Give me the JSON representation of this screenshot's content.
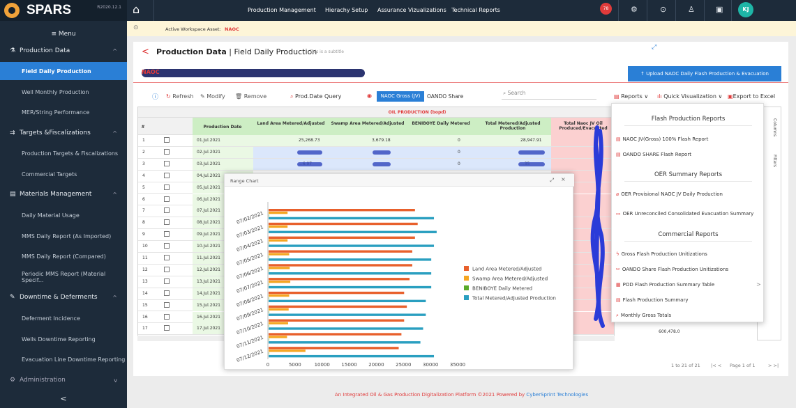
{
  "app": {
    "name": "SPARS",
    "version": "R2020.12.1"
  },
  "sidebar": {
    "menu_label": "≡ Menu",
    "sections": [
      {
        "label": "Production Data",
        "items": [
          "Field Daily Production",
          "Well Monthly Production",
          "MER/String Performance"
        ]
      },
      {
        "label": "Targets &Fiscalizations",
        "items": [
          "Production Targets & Fiscalizations",
          "Commercial Targets"
        ]
      },
      {
        "label": "Materials Management",
        "items": [
          "Daily Material Usage",
          "MMS Daily Report (As Imported)",
          "MMS Daily Report (Compared)",
          "Periodic MMS Report (Material Specif..."
        ]
      },
      {
        "label": "Downtime & Deferments",
        "items": [
          "Deferment Incidence",
          "Wells Downtime Reporting",
          "Evacuation Line Downtime Reporting"
        ]
      },
      {
        "label": "Administration",
        "items": []
      }
    ],
    "collapse": "<"
  },
  "topnav": {
    "items": [
      "Production Management",
      "Hierachy Setup",
      "Assurance Vizualizations",
      "Technical Reports"
    ],
    "notifications": "78",
    "avatar": "KJ"
  },
  "workspace": {
    "label": "Active Workspace Asset:",
    "value": "NAOC"
  },
  "page": {
    "title": "Production Data",
    "title_sep": " | ",
    "title_sub": "Field Daily Production",
    "subtitle": "This is a subtitle",
    "subheader": "NAOC",
    "upload_button": "↑ Upload NAOC Daily Flash Production & Evacuation"
  },
  "toolbar": {
    "refresh": "Refresh",
    "modify": "Modify",
    "remove": "Remove",
    "query": "Prod.Date Query",
    "gross": "NAOC Gross (JV)",
    "share": "OANDO Share",
    "search_placeholder": "Search",
    "reports": "Reports",
    "quick_viz": "Quick Visualization",
    "export": "Export to Excel"
  },
  "grid": {
    "group_header": "OIL PRODUCTION (bopd)",
    "columns": [
      "#",
      "Production Date",
      "Land Area Metered/Adjusted",
      "Swamp Area Metered/Adjusted",
      "BENIBOYE Daily Metered",
      "Total Metered/Adjusted Production",
      "Total Naoc JV Oil Produced/Evacuated"
    ],
    "rows": [
      {
        "n": "1",
        "date": "01.Jul.2021",
        "land": "25,268.73",
        "swamp": "3,679.18",
        "beni": "0",
        "total": "28,947.91"
      },
      {
        "n": "2",
        "date": "02.Jul.2021",
        "land": "",
        "swamp": "",
        "beni": "0",
        "total": ""
      },
      {
        "n": "3",
        "date": "03.Jul.2021",
        "land": "...6.97",
        "swamp": "",
        "beni": "0",
        "total": "...35"
      },
      {
        "n": "4",
        "date": "04.Jul.2021"
      },
      {
        "n": "5",
        "date": "05.Jul.2021"
      },
      {
        "n": "6",
        "date": "06.Jul.2021"
      },
      {
        "n": "7",
        "date": "07.Jul.2021"
      },
      {
        "n": "8",
        "date": "08.Jul.2021"
      },
      {
        "n": "9",
        "date": "09.Jul.2021"
      },
      {
        "n": "10",
        "date": "10.Jul.2021"
      },
      {
        "n": "11",
        "date": "11.Jul.2021"
      },
      {
        "n": "12",
        "date": "12.Jul.2021"
      },
      {
        "n": "13",
        "date": "13.Jul.2021"
      },
      {
        "n": "14",
        "date": "14.Jul.2021"
      },
      {
        "n": "15",
        "date": "15.Jul.2021"
      },
      {
        "n": "16",
        "date": "16.Jul.2021"
      },
      {
        "n": "17",
        "date": "17.Jul.2021"
      }
    ],
    "right_value": "600,478.0",
    "side_columns": "Columns",
    "side_filters": "Filters"
  },
  "chart_window": {
    "title": "Range Chart"
  },
  "chart_data": {
    "type": "bar",
    "orientation": "horizontal",
    "categories": [
      "07/02/2021",
      "07/03/2021",
      "07/04/2021",
      "07/05/2021",
      "07/06/2021",
      "07/07/2021",
      "07/08/2021",
      "07/09/2021",
      "07/10/2021",
      "07/11/2021",
      "07/12/2021"
    ],
    "series": [
      {
        "name": "Land Area Metered/Adjusted",
        "color": "#e8602c",
        "values": [
          27000,
          27500,
          27000,
          26500,
          26500,
          26000,
          25000,
          25500,
          25000,
          24500,
          24000
        ]
      },
      {
        "name": "Swamp Area Metered/Adjusted",
        "color": "#f5a623",
        "values": [
          3500,
          3500,
          3500,
          3800,
          3900,
          4000,
          3800,
          3700,
          3600,
          3400,
          6800
        ]
      },
      {
        "name": "BENIBOYE Daily Metered",
        "color": "#5aaa2a",
        "values": [
          0,
          0,
          0,
          0,
          0,
          0,
          0,
          0,
          0,
          0,
          0
        ]
      },
      {
        "name": "Total Metered/Adjusted Production",
        "color": "#2a9fc0",
        "values": [
          30500,
          31000,
          30500,
          30000,
          30000,
          30000,
          29000,
          29000,
          28500,
          28000,
          30500
        ]
      }
    ],
    "xlim": [
      0,
      35000
    ],
    "xticks": [
      0,
      5000,
      10000,
      15000,
      20000,
      25000,
      30000,
      35000
    ],
    "legend": "right"
  },
  "dropdown": {
    "flash_header": "Flash Production Reports",
    "flash_items": [
      "NAOC JV(Gross) 100% Flash Report",
      "OANDO SHARE Flash Report"
    ],
    "oer_header": "OER Summary Reports",
    "oer_items": [
      "OER Provisional NAOC JV Daily Production",
      "OER Unreconciled Consolidated Evacuation Summary"
    ],
    "commercial_header": "Commercial Reports",
    "commercial_items": [
      "Gross Flash Production Unitizations",
      "OANDO Share Flash Production Unitizations",
      "POD Flash Production Summary Table",
      "Flash Production Summary",
      "Monthly Gross Totals"
    ]
  },
  "pager": {
    "range": "1 to 21 of 21",
    "first_prev": "|<  <",
    "page": "Page 1 of 1",
    "next_last": ">  >|"
  },
  "footer": {
    "text": "An Integrated Oil & Gas Production Digitalization Platform ©2021 Powered by ",
    "link": "CyberSprint Technologies"
  }
}
